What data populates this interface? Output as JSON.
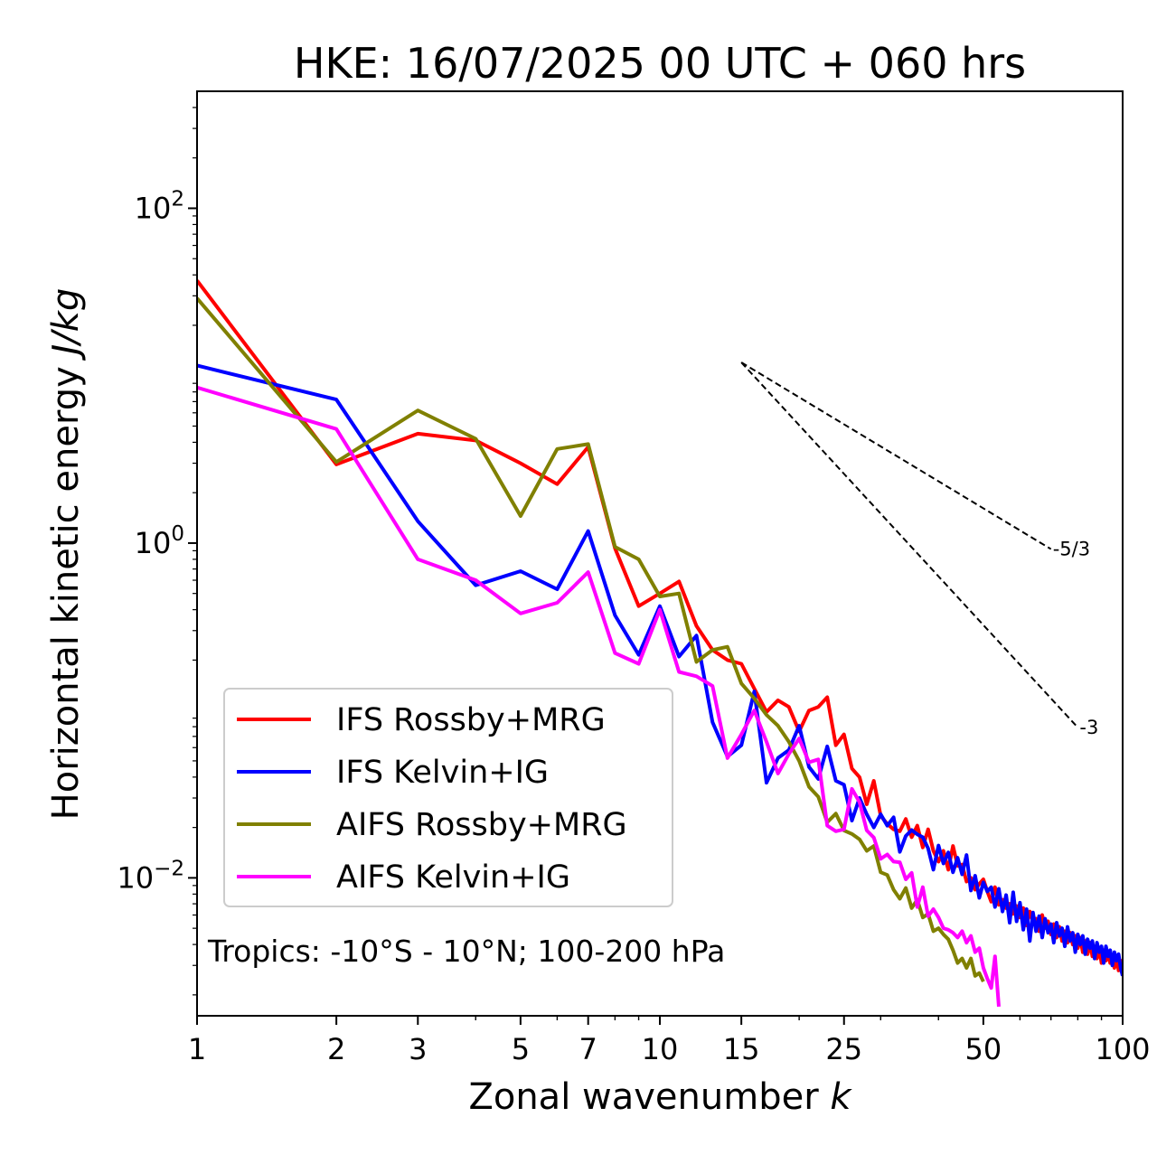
{
  "chart_data": {
    "type": "line",
    "title": "HKE: 16/07/2025 00 UTC + 060 hrs",
    "xlabel": "Zonal wavenumber k",
    "xlabel_parts": {
      "text": "Zonal wavenumber ",
      "italic": "k"
    },
    "ylabel": "Horizontal kinetic energy J/kg",
    "ylabel_parts": {
      "text": "Horizontal kinetic energy ",
      "italic": "J/kg"
    },
    "x_scale": "log",
    "y_scale": "log",
    "xlim": [
      1,
      100
    ],
    "ylim": [
      0.0015,
      500
    ],
    "x_ticks": [
      1,
      2,
      3,
      5,
      7,
      10,
      15,
      25,
      50,
      100
    ],
    "x_tick_labels": [
      "1",
      "2",
      "3",
      "5",
      "7",
      "10",
      "15",
      "25",
      "50",
      "100"
    ],
    "y_ticks": [
      {
        "value": 100,
        "base": "10",
        "exp": "2"
      },
      {
        "value": 1,
        "base": "10",
        "exp": "0"
      },
      {
        "value": 0.01,
        "base": "10",
        "exp": "−2"
      }
    ],
    "legend_position": "lower-left",
    "annotation": "Tropics: -10°S - 10°N; 100-200 hPa",
    "reference_slopes": [
      {
        "label": "-5/3",
        "slope": -1.6667,
        "x_start": 15,
        "y_start": 12,
        "x_end": 70
      },
      {
        "label": "-3",
        "slope": -3,
        "x_start": 15,
        "y_start": 12,
        "x_end": 80
      }
    ],
    "series": [
      {
        "name": "IFS Rossby+MRG",
        "color": "#ff0000",
        "x": [
          1,
          2,
          3,
          4,
          5,
          6,
          7,
          8,
          9,
          10,
          11,
          12,
          13,
          14,
          15,
          16,
          17,
          18,
          19,
          20,
          21,
          22,
          23,
          24,
          25,
          26,
          27,
          28,
          29,
          30,
          31,
          32,
          33,
          34,
          35,
          36,
          37,
          38,
          39,
          40,
          41,
          42,
          43,
          44,
          45,
          46,
          47,
          48,
          49,
          50,
          51,
          52,
          53,
          54,
          55,
          56,
          57,
          58,
          59,
          60,
          61,
          62,
          63,
          64,
          65,
          66,
          67,
          68,
          69,
          70,
          71,
          72,
          73,
          74,
          75,
          76,
          77,
          78,
          79,
          80,
          81,
          82,
          83,
          84,
          85,
          86,
          87,
          88,
          89,
          90,
          91,
          92,
          93,
          94,
          95,
          96,
          97,
          98,
          99,
          100
        ],
        "y": [
          37,
          2.95,
          4.5,
          4.1,
          3.0,
          2.25,
          3.75,
          0.93,
          0.42,
          0.5,
          0.59,
          0.32,
          0.23,
          0.2,
          0.19,
          0.135,
          0.098,
          0.115,
          0.105,
          0.075,
          0.1,
          0.105,
          0.12,
          0.062,
          0.072,
          0.045,
          0.04,
          0.0275,
          0.038,
          0.0235,
          0.021,
          0.0195,
          0.019,
          0.0225,
          0.0175,
          0.0205,
          0.0152,
          0.0195,
          0.0145,
          0.0125,
          0.0145,
          0.0112,
          0.0155,
          0.0118,
          0.012,
          0.0095,
          0.01,
          0.0085,
          0.0092,
          0.0098,
          0.0083,
          0.0072,
          0.0088,
          0.0069,
          0.0074,
          0.0066,
          0.007,
          0.0061,
          0.0068,
          0.0058,
          0.0066,
          0.0052,
          0.0063,
          0.0055,
          0.0057,
          0.0048,
          0.006,
          0.005,
          0.0055,
          0.0046,
          0.0053,
          0.0044,
          0.0051,
          0.0042,
          0.0048,
          0.0041,
          0.0047,
          0.004,
          0.0045,
          0.0038,
          0.0044,
          0.0036,
          0.0042,
          0.0035,
          0.0041,
          0.0034,
          0.0039,
          0.0033,
          0.0038,
          0.0031,
          0.0037,
          0.0032,
          0.0035,
          0.0031,
          0.0033,
          0.0029,
          0.0034,
          0.0028,
          0.0032,
          0.0027
        ]
      },
      {
        "name": "IFS Kelvin+IG",
        "color": "#0000ff",
        "x": [
          1,
          2,
          3,
          4,
          5,
          6,
          7,
          8,
          9,
          10,
          11,
          12,
          13,
          14,
          15,
          16,
          17,
          18,
          19,
          20,
          21,
          22,
          23,
          24,
          25,
          26,
          27,
          28,
          29,
          30,
          31,
          32,
          33,
          34,
          35,
          36,
          37,
          38,
          39,
          40,
          41,
          42,
          43,
          44,
          45,
          46,
          47,
          48,
          49,
          50,
          51,
          52,
          53,
          54,
          55,
          56,
          57,
          58,
          59,
          60,
          61,
          62,
          63,
          64,
          65,
          66,
          67,
          68,
          69,
          70,
          71,
          72,
          73,
          74,
          75,
          76,
          77,
          78,
          79,
          80,
          81,
          82,
          83,
          84,
          85,
          86,
          87,
          88,
          89,
          90,
          91,
          92,
          93,
          94,
          95,
          96,
          97,
          98,
          99,
          100
        ],
        "y": [
          11.5,
          7.2,
          1.35,
          0.56,
          0.68,
          0.53,
          1.18,
          0.37,
          0.215,
          0.42,
          0.21,
          0.28,
          0.085,
          0.053,
          0.062,
          0.13,
          0.037,
          0.052,
          0.058,
          0.081,
          0.046,
          0.039,
          0.061,
          0.038,
          0.036,
          0.022,
          0.03,
          0.024,
          0.02,
          0.024,
          0.0205,
          0.023,
          0.0143,
          0.0178,
          0.0193,
          0.0182,
          0.0175,
          0.015,
          0.0112,
          0.0156,
          0.0122,
          0.0142,
          0.0108,
          0.0132,
          0.0105,
          0.0137,
          0.0084,
          0.0103,
          0.0076,
          0.0094,
          0.0083,
          0.0088,
          0.0067,
          0.0086,
          0.0063,
          0.0079,
          0.0054,
          0.0082,
          0.0055,
          0.0071,
          0.0049,
          0.0065,
          0.0042,
          0.0062,
          0.0048,
          0.0059,
          0.0044,
          0.0057,
          0.0047,
          0.0053,
          0.0041,
          0.0054,
          0.0045,
          0.005,
          0.0039,
          0.0051,
          0.0042,
          0.0047,
          0.0036,
          0.0046,
          0.004,
          0.0045,
          0.0035,
          0.0043,
          0.0038,
          0.0042,
          0.0033,
          0.0041,
          0.0036,
          0.0039,
          0.0031,
          0.0039,
          0.0034,
          0.0037,
          0.003,
          0.0036,
          0.0032,
          0.0035,
          0.0029,
          0.0026
        ]
      },
      {
        "name": "AIFS Rossby+MRG",
        "color": "#808000",
        "x": [
          1,
          2,
          3,
          4,
          5,
          6,
          7,
          8,
          9,
          10,
          11,
          12,
          13,
          14,
          15,
          16,
          17,
          18,
          19,
          20,
          21,
          22,
          23,
          24,
          25,
          26,
          27,
          28,
          29,
          30,
          31,
          32,
          33,
          34,
          35,
          36,
          37,
          38,
          39,
          40,
          41,
          42,
          43,
          44,
          45,
          46,
          47,
          48,
          49,
          50
        ],
        "y": [
          29,
          3.05,
          6.2,
          4.2,
          1.45,
          3.65,
          3.9,
          0.95,
          0.8,
          0.48,
          0.5,
          0.195,
          0.23,
          0.24,
          0.145,
          0.118,
          0.094,
          0.081,
          0.065,
          0.05,
          0.035,
          0.0305,
          0.0215,
          0.0242,
          0.0192,
          0.0183,
          0.017,
          0.0145,
          0.0155,
          0.0108,
          0.0104,
          0.0085,
          0.0075,
          0.0087,
          0.0066,
          0.0074,
          0.0058,
          0.0061,
          0.0048,
          0.005,
          0.0046,
          0.0043,
          0.0037,
          0.0031,
          0.0033,
          0.0029,
          0.0033,
          0.0026,
          0.0027,
          0.0024
        ]
      },
      {
        "name": "AIFS Kelvin+IG",
        "color": "#ff00ff",
        "x": [
          1,
          2,
          3,
          4,
          5,
          6,
          7,
          8,
          9,
          10,
          11,
          12,
          13,
          14,
          15,
          16,
          17,
          18,
          19,
          20,
          21,
          22,
          23,
          24,
          25,
          26,
          27,
          28,
          29,
          30,
          31,
          32,
          33,
          34,
          35,
          36,
          37,
          38,
          39,
          40,
          41,
          42,
          43,
          44,
          45,
          46,
          47,
          48,
          49,
          50,
          51,
          52,
          53,
          54
        ],
        "y": [
          8.5,
          4.8,
          0.8,
          0.6,
          0.38,
          0.44,
          0.67,
          0.22,
          0.19,
          0.4,
          0.17,
          0.16,
          0.14,
          0.052,
          0.072,
          0.1,
          0.065,
          0.042,
          0.055,
          0.068,
          0.049,
          0.051,
          0.0205,
          0.019,
          0.0195,
          0.034,
          0.0283,
          0.0192,
          0.0174,
          0.013,
          0.0138,
          0.0125,
          0.0124,
          0.0098,
          0.0107,
          0.0067,
          0.0088,
          0.0059,
          0.0065,
          0.0058,
          0.005,
          0.0049,
          0.0047,
          0.0044,
          0.0048,
          0.0041,
          0.0045,
          0.0036,
          0.0038,
          0.0029,
          0.0025,
          0.0022,
          0.0034,
          0.0017
        ]
      }
    ]
  }
}
